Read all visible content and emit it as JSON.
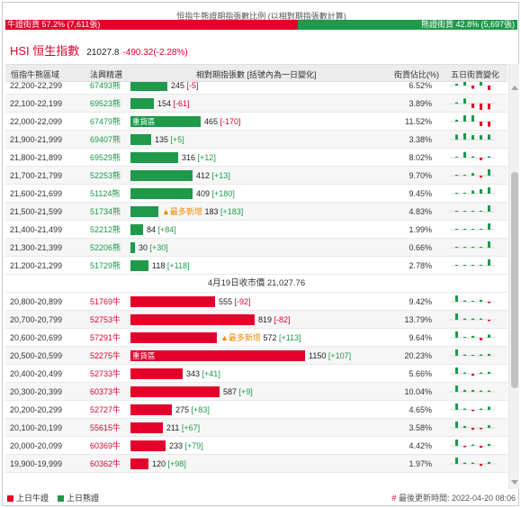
{
  "ratio": {
    "title": "恒指牛熊證期指張數比例 (以相對期指張數計算)",
    "bull_label": "牛證街貨 57.2% (7,611張)",
    "bear_label": "熊證街貨 42.8% (5,697張)",
    "bull_pct": 57.2,
    "bull_color": "#e3002b",
    "bear_color": "#1e9a4a"
  },
  "index": {
    "name": "HSI 恒生指數",
    "value": "21027.8",
    "change": "-490.32(-2.28%)"
  },
  "table": {
    "headers": {
      "range": "恒指牛熊區域",
      "code": "法興精選",
      "contracts": "相對期指張數 [括號內為一日變化]",
      "share": "街貨佔比(%)",
      "spark": "五日街貨變化"
    },
    "close_row": "4月19日收市價 21,027.76",
    "bear_rows": [
      {
        "range": "22,200-22,299",
        "code": "67493熊",
        "tag": "",
        "pre": "",
        "value": 245,
        "change": "[-5]",
        "share": "6.52%",
        "spark": [
          0.3,
          1.0,
          -0.5,
          0.9,
          -0.7
        ]
      },
      {
        "range": "22,100-22,199",
        "code": "69523熊",
        "tag": "",
        "pre": "",
        "value": 154,
        "change": "[-61]",
        "share": "3.89%",
        "spark": [
          0.2,
          0.8,
          -0.7,
          -1.0,
          -0.9
        ]
      },
      {
        "range": "22,000-22,099",
        "code": "67479熊",
        "tag": "重貨區",
        "pre": "",
        "value": 465,
        "change": "[-170]",
        "share": "11.52%",
        "spark": [
          0.3,
          1.0,
          1.0,
          -0.7,
          -0.8
        ]
      },
      {
        "range": "21,900-21,999",
        "code": "69407熊",
        "tag": "",
        "pre": "",
        "value": 135,
        "change": "[+5]",
        "share": "3.38%",
        "spark": [
          0.8,
          1.0,
          0.7,
          0.7,
          0.8
        ]
      },
      {
        "range": "21,800-21,899",
        "code": "69529熊",
        "tag": "",
        "pre": "",
        "value": 316,
        "change": "[+12]",
        "share": "8.02%",
        "spark": [
          0.0,
          0.9,
          0.2,
          -0.4,
          0.2
        ]
      },
      {
        "range": "21,700-21,799",
        "code": "52253熊",
        "tag": "",
        "pre": "",
        "value": 412,
        "change": "[+13]",
        "share": "9.70%",
        "spark": [
          0.0,
          0.0,
          0.4,
          -0.3,
          1.0
        ]
      },
      {
        "range": "21,600-21,699",
        "code": "51124熊",
        "tag": "",
        "pre": "",
        "value": 409,
        "change": "[+180]",
        "share": "9.45%",
        "spark": [
          0.0,
          0.0,
          0.5,
          0.7,
          1.0
        ]
      },
      {
        "range": "21,500-21,599",
        "code": "51734熊",
        "tag": "",
        "pre": "▲最多新增",
        "value": 183,
        "change": "[+183]",
        "share": "4.83%",
        "spark": [
          0.0,
          0.0,
          0.0,
          0.0,
          1.0
        ]
      },
      {
        "range": "21,400-21,499",
        "code": "52212熊",
        "tag": "",
        "pre": "",
        "value": 84,
        "change": "[+84]",
        "share": "1.99%",
        "spark": [
          0.0,
          0.0,
          0.0,
          0.0,
          1.0
        ]
      },
      {
        "range": "21,300-21,399",
        "code": "52206熊",
        "tag": "",
        "pre": "",
        "value": 30,
        "change": "[+30]",
        "share": "0.66%",
        "spark": [
          0.0,
          0.0,
          0.0,
          0.0,
          1.0
        ]
      },
      {
        "range": "21,200-21,299",
        "code": "51729熊",
        "tag": "",
        "pre": "",
        "value": 118,
        "change": "[+118]",
        "share": "2.78%",
        "spark": [
          0.0,
          0.0,
          0.0,
          0.0,
          1.0
        ]
      }
    ],
    "bull_rows": [
      {
        "range": "20,800-20,899",
        "code": "51769牛",
        "tag": "",
        "pre": "",
        "value": 555,
        "change": "[-92]",
        "share": "9.42%",
        "spark": [
          1.0,
          0.2,
          0.1,
          0.3,
          -0.2
        ]
      },
      {
        "range": "20,700-20,799",
        "code": "52753牛",
        "tag": "",
        "pre": "",
        "value": 819,
        "change": "[-82]",
        "share": "13.79%",
        "spark": [
          1.0,
          0.2,
          0.2,
          0.2,
          -0.2
        ]
      },
      {
        "range": "20,600-20,699",
        "code": "57291牛",
        "tag": "",
        "pre": "▲最多新增",
        "value": 572,
        "change": "[+113]",
        "share": "9.64%",
        "spark": [
          1.0,
          0.1,
          0.3,
          -0.4,
          0.5
        ]
      },
      {
        "range": "20,500-20,599",
        "code": "52275牛",
        "tag": "重貨區",
        "pre": "",
        "value": 1150,
        "change": "[+107]",
        "share": "20.23%",
        "spark": [
          1.0,
          0.2,
          0.1,
          0.2,
          0.3
        ]
      },
      {
        "range": "20,400-20,499",
        "code": "52733牛",
        "tag": "",
        "pre": "",
        "value": 343,
        "change": "[+41]",
        "share": "5.66%",
        "spark": [
          1.0,
          0.2,
          -0.3,
          0.2,
          0.3
        ]
      },
      {
        "range": "20,300-20,399",
        "code": "60373牛",
        "tag": "",
        "pre": "",
        "value": 587,
        "change": "[+9]",
        "share": "10.04%",
        "spark": [
          1.0,
          0.3,
          0.3,
          0.2,
          0.2
        ]
      },
      {
        "range": "20,200-20,299",
        "code": "52727牛",
        "tag": "",
        "pre": "",
        "value": 275,
        "change": "[+83]",
        "share": "4.65%",
        "spark": [
          1.0,
          0.2,
          -0.2,
          0.2,
          0.5
        ]
      },
      {
        "range": "20,100-20,199",
        "code": "55615牛",
        "tag": "",
        "pre": "",
        "value": 211,
        "change": "[+67]",
        "share": "3.58%",
        "spark": [
          1.0,
          0.3,
          -0.3,
          -0.2,
          0.4
        ]
      },
      {
        "range": "20,000-20,099",
        "code": "60369牛",
        "tag": "",
        "pre": "",
        "value": 233,
        "change": "[+79]",
        "share": "4.42%",
        "spark": [
          1.0,
          -0.2,
          0.2,
          -0.3,
          0.3
        ]
      },
      {
        "range": "19,900-19,999",
        "code": "60362牛",
        "tag": "",
        "pre": "",
        "value": 120,
        "change": "[+98]",
        "share": "1.97%",
        "spark": [
          1.0,
          0.2,
          0.2,
          -0.3,
          0.3
        ]
      }
    ]
  },
  "footer": {
    "legend_bull": "上日牛證",
    "legend_bear": "上日熊證",
    "update": "最後更新時間: 2022-04-20 08:06"
  }
}
